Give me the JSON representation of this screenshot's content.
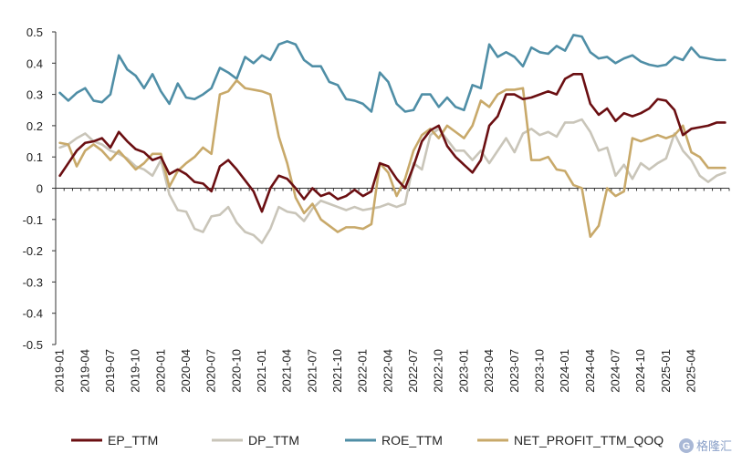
{
  "chart_data": {
    "type": "line",
    "title": "",
    "xlabel": "",
    "ylabel": "",
    "ylim": [
      -0.5,
      0.5
    ],
    "yticks": [
      "0.5",
      "0.4",
      "0.3",
      "0.2",
      "0.1",
      "0",
      "-0.1",
      "-0.2",
      "-0.3",
      "-0.4",
      "-0.5"
    ],
    "ytick_values": [
      0.5,
      0.4,
      0.3,
      0.2,
      0.1,
      0,
      -0.1,
      -0.2,
      -0.3,
      -0.4,
      -0.5
    ],
    "xtick_labels": [
      "2019-01",
      "2019-04",
      "2019-07",
      "2019-10",
      "2020-01",
      "2020-04",
      "2020-07",
      "2020-10",
      "2021-01",
      "2021-04",
      "2021-07",
      "2021-10",
      "2022-01",
      "2022-04",
      "2022-07",
      "2022-10",
      "2023-01",
      "2023-04",
      "2023-07",
      "2023-10",
      "2024-01",
      "2024-04",
      "2024-07",
      "2024-10",
      "2025-01",
      "2025-04"
    ],
    "x_start": "2019-01",
    "n_points": 80,
    "legend_position": "bottom",
    "series": [
      {
        "name": "EP_TTM",
        "color": "#6b0f12",
        "values": [
          0.04,
          0.08,
          0.12,
          0.145,
          0.15,
          0.16,
          0.13,
          0.18,
          0.15,
          0.125,
          0.115,
          0.09,
          0.1,
          0.045,
          0.06,
          0.045,
          0.02,
          0.015,
          -0.01,
          0.07,
          0.09,
          0.06,
          0.025,
          -0.01,
          -0.075,
          0.0,
          0.04,
          0.03,
          0.0,
          -0.035,
          0.0,
          -0.025,
          -0.015,
          -0.035,
          -0.025,
          -0.005,
          -0.025,
          -0.01,
          0.08,
          0.07,
          0.03,
          0.0,
          0.07,
          0.15,
          0.185,
          0.2,
          0.135,
          0.1,
          0.075,
          0.05,
          0.09,
          0.2,
          0.23,
          0.3,
          0.3,
          0.285,
          0.29,
          0.3,
          0.31,
          0.3,
          0.35,
          0.365,
          0.365,
          0.27,
          0.235,
          0.255,
          0.215,
          0.24,
          0.23,
          0.24,
          0.255,
          0.285,
          0.28,
          0.25,
          0.17,
          0.19,
          0.195,
          0.2,
          0.21,
          0.21
        ]
      },
      {
        "name": "DP_TTM",
        "color": "#c9c5b9",
        "values": [
          0.13,
          0.14,
          0.16,
          0.175,
          0.15,
          0.14,
          0.12,
          0.11,
          0.095,
          0.07,
          0.06,
          0.04,
          0.09,
          -0.02,
          -0.07,
          -0.075,
          -0.13,
          -0.14,
          -0.09,
          -0.085,
          -0.06,
          -0.11,
          -0.14,
          -0.15,
          -0.175,
          -0.13,
          -0.06,
          -0.075,
          -0.08,
          -0.105,
          -0.065,
          -0.04,
          -0.05,
          -0.06,
          -0.07,
          -0.06,
          -0.07,
          -0.065,
          -0.06,
          -0.05,
          -0.06,
          -0.05,
          0.08,
          0.06,
          0.17,
          0.19,
          0.155,
          0.12,
          0.12,
          0.09,
          0.12,
          0.08,
          0.12,
          0.16,
          0.115,
          0.175,
          0.19,
          0.17,
          0.18,
          0.165,
          0.21,
          0.21,
          0.22,
          0.18,
          0.12,
          0.13,
          0.04,
          0.075,
          0.03,
          0.08,
          0.06,
          0.08,
          0.095,
          0.175,
          0.12,
          0.09,
          0.04,
          0.02,
          0.04,
          0.05
        ]
      },
      {
        "name": "ROE_TTM",
        "color": "#4f8ea6",
        "values": [
          0.305,
          0.28,
          0.305,
          0.32,
          0.28,
          0.275,
          0.3,
          0.425,
          0.38,
          0.36,
          0.32,
          0.365,
          0.31,
          0.27,
          0.335,
          0.29,
          0.285,
          0.3,
          0.32,
          0.385,
          0.37,
          0.35,
          0.42,
          0.4,
          0.425,
          0.41,
          0.46,
          0.47,
          0.46,
          0.41,
          0.39,
          0.39,
          0.34,
          0.33,
          0.285,
          0.28,
          0.27,
          0.245,
          0.37,
          0.34,
          0.27,
          0.245,
          0.25,
          0.3,
          0.3,
          0.26,
          0.29,
          0.26,
          0.25,
          0.33,
          0.32,
          0.46,
          0.42,
          0.435,
          0.42,
          0.39,
          0.45,
          0.435,
          0.43,
          0.455,
          0.44,
          0.49,
          0.485,
          0.435,
          0.415,
          0.42,
          0.4,
          0.415,
          0.425,
          0.405,
          0.395,
          0.39,
          0.395,
          0.42,
          0.41,
          0.45,
          0.42,
          0.415,
          0.41,
          0.41
        ]
      },
      {
        "name": "NET_PROFIT_TTM_QOQ",
        "color": "#c8a96a",
        "values": [
          0.145,
          0.14,
          0.07,
          0.12,
          0.14,
          0.12,
          0.09,
          0.12,
          0.09,
          0.06,
          0.08,
          0.11,
          0.11,
          0.005,
          0.055,
          0.08,
          0.1,
          0.13,
          0.11,
          0.3,
          0.31,
          0.345,
          0.32,
          0.315,
          0.31,
          0.3,
          0.165,
          0.08,
          -0.03,
          -0.08,
          -0.05,
          -0.1,
          -0.12,
          -0.14,
          -0.125,
          -0.125,
          -0.13,
          -0.115,
          0.08,
          0.05,
          -0.025,
          0.03,
          0.12,
          0.17,
          0.19,
          0.16,
          0.2,
          0.18,
          0.16,
          0.2,
          0.28,
          0.26,
          0.3,
          0.315,
          0.315,
          0.32,
          0.09,
          0.09,
          0.1,
          0.06,
          0.055,
          0.01,
          0.0,
          -0.155,
          -0.12,
          0.0,
          -0.025,
          -0.01,
          0.16,
          0.15,
          0.16,
          0.17,
          0.16,
          0.17,
          0.2,
          0.115,
          0.1,
          0.065,
          0.065,
          0.065
        ]
      }
    ]
  },
  "watermark": {
    "text": "格隆汇",
    "logo": "G"
  }
}
